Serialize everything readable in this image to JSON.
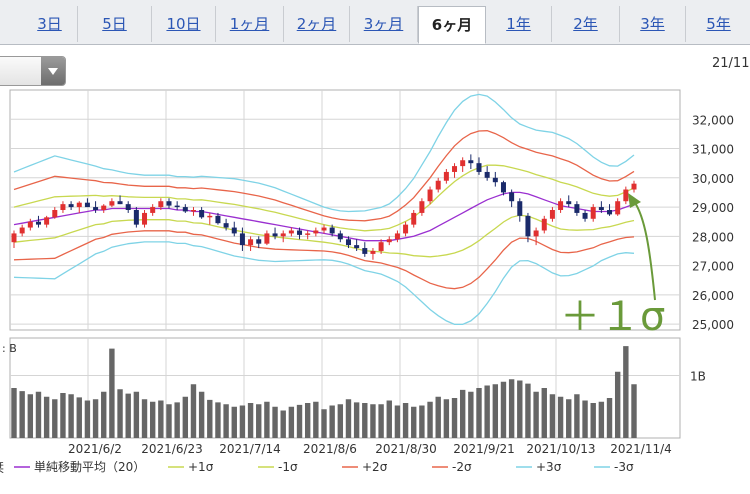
{
  "tabs": [
    {
      "label": "3日",
      "active": false
    },
    {
      "label": "5日",
      "active": false
    },
    {
      "label": "10日",
      "active": false
    },
    {
      "label": "1ヶ月",
      "active": false
    },
    {
      "label": "2ヶ月",
      "active": false
    },
    {
      "label": "3ヶ月",
      "active": false
    },
    {
      "label": "6ヶ月",
      "active": true
    },
    {
      "label": "1年",
      "active": false
    },
    {
      "label": "2年",
      "active": false
    },
    {
      "label": "3年",
      "active": false
    },
    {
      "label": "5年",
      "active": false
    }
  ],
  "date_corner": "21/11",
  "annotation_text": "＋１σ",
  "colors": {
    "up": "#e03030",
    "down": "#1a2a6a",
    "sma": "#9a2fd0",
    "sigma1": "#c8d850",
    "sigma2": "#e8654a",
    "sigma3": "#7fd3e6",
    "volume": "#666666",
    "annotation": "#6a9a3a"
  },
  "chart_data": {
    "type": "candlestick",
    "title": "",
    "price_axis": {
      "ticks": [
        "25,000",
        "26,000",
        "27,000",
        "28,000",
        "29,000",
        "30,000",
        "31,000",
        "32,000"
      ],
      "ylim": [
        24800,
        33000
      ]
    },
    "volume_axis": {
      "ticks": [
        "1B"
      ],
      "legend_prefix": ": B"
    },
    "x_labels": [
      "2021/6/2",
      "2021/6/23",
      "2021/7/14",
      "2021/8/6",
      "2021/8/30",
      "2021/9/21",
      "2021/10/13",
      "2021/11/4"
    ],
    "legend_prefix": "栞",
    "legend": [
      {
        "key": "sma",
        "label": "単純移動平均（20）"
      },
      {
        "key": "sigma1",
        "label": "+1σ"
      },
      {
        "key": "sigma1",
        "label": "-1σ"
      },
      {
        "key": "sigma2",
        "label": "+2σ"
      },
      {
        "key": "sigma2",
        "label": "-2σ"
      },
      {
        "key": "sigma3",
        "label": "+3σ"
      },
      {
        "key": "sigma3",
        "label": "-3σ"
      }
    ],
    "candles": [
      [
        27800,
        28200,
        27600,
        28100
      ],
      [
        28100,
        28400,
        28000,
        28300
      ],
      [
        28300,
        28600,
        28200,
        28500
      ],
      [
        28500,
        28700,
        28300,
        28400
      ],
      [
        28400,
        28700,
        28300,
        28650
      ],
      [
        28650,
        29000,
        28600,
        28900
      ],
      [
        28900,
        29200,
        28800,
        29100
      ],
      [
        29100,
        29200,
        28900,
        29000
      ],
      [
        29000,
        29200,
        28800,
        29150
      ],
      [
        29150,
        29300,
        29000,
        29000
      ],
      [
        29000,
        29200,
        28800,
        28900
      ],
      [
        28900,
        29100,
        28800,
        29050
      ],
      [
        29050,
        29300,
        29000,
        29200
      ],
      [
        29200,
        29400,
        29100,
        29100
      ],
      [
        29100,
        29200,
        28800,
        28900
      ],
      [
        28900,
        29000,
        28300,
        28400
      ],
      [
        28400,
        28900,
        28300,
        28800
      ],
      [
        28800,
        29100,
        28700,
        29000
      ],
      [
        29000,
        29300,
        28900,
        29200
      ],
      [
        29200,
        29300,
        28950,
        29050
      ],
      [
        29050,
        29200,
        28900,
        29000
      ],
      [
        29000,
        29100,
        28800,
        28850
      ],
      [
        28850,
        29000,
        28700,
        28900
      ],
      [
        28900,
        29000,
        28600,
        28650
      ],
      [
        28650,
        28800,
        28400,
        28700
      ],
      [
        28700,
        28800,
        28400,
        28450
      ],
      [
        28450,
        28600,
        28200,
        28300
      ],
      [
        28300,
        28500,
        28000,
        28100
      ],
      [
        28100,
        28300,
        27500,
        27700
      ],
      [
        27700,
        28000,
        27500,
        27900
      ],
      [
        27900,
        28000,
        27600,
        27750
      ],
      [
        27750,
        28200,
        27700,
        28100
      ],
      [
        28100,
        28300,
        27900,
        28000
      ],
      [
        28000,
        28200,
        27800,
        28100
      ],
      [
        28100,
        28300,
        28000,
        28200
      ],
      [
        28200,
        28300,
        27900,
        28050
      ],
      [
        28050,
        28200,
        27900,
        28100
      ],
      [
        28100,
        28300,
        28000,
        28200
      ],
      [
        28200,
        28400,
        28100,
        28300
      ],
      [
        28300,
        28400,
        28000,
        28100
      ],
      [
        28100,
        28200,
        27800,
        27900
      ],
      [
        27900,
        28000,
        27600,
        27700
      ],
      [
        27700,
        27900,
        27500,
        27600
      ],
      [
        27600,
        27800,
        27300,
        27400
      ],
      [
        27400,
        27600,
        27200,
        27500
      ],
      [
        27500,
        27900,
        27400,
        27800
      ],
      [
        27800,
        28000,
        27700,
        27900
      ],
      [
        27900,
        28200,
        27800,
        28100
      ],
      [
        28100,
        28500,
        28000,
        28400
      ],
      [
        28400,
        28900,
        28300,
        28800
      ],
      [
        28800,
        29300,
        28700,
        29200
      ],
      [
        29200,
        29700,
        29100,
        29600
      ],
      [
        29600,
        30000,
        29500,
        29900
      ],
      [
        29900,
        30300,
        29800,
        30200
      ],
      [
        30200,
        30500,
        30000,
        30400
      ],
      [
        30400,
        30700,
        30200,
        30600
      ],
      [
        30600,
        30800,
        30300,
        30500
      ],
      [
        30500,
        30700,
        30100,
        30200
      ],
      [
        30200,
        30400,
        29900,
        30000
      ],
      [
        30000,
        30200,
        29700,
        29850
      ],
      [
        29850,
        29900,
        29400,
        29500
      ],
      [
        29500,
        29600,
        29000,
        29200
      ],
      [
        29200,
        29300,
        28500,
        28700
      ],
      [
        28700,
        28800,
        27800,
        28000
      ],
      [
        28000,
        28300,
        27700,
        28200
      ],
      [
        28200,
        28700,
        28100,
        28600
      ],
      [
        28600,
        29000,
        28500,
        28900
      ],
      [
        28900,
        29300,
        28800,
        29200
      ],
      [
        29200,
        29400,
        29000,
        29100
      ],
      [
        29100,
        29200,
        28700,
        28800
      ],
      [
        28800,
        28900,
        28500,
        28600
      ],
      [
        28600,
        29100,
        28500,
        29000
      ],
      [
        29000,
        29200,
        28800,
        28900
      ],
      [
        28900,
        29100,
        28700,
        28750
      ],
      [
        28750,
        29300,
        28700,
        29200
      ],
      [
        29200,
        29700,
        29100,
        29600
      ],
      [
        29600,
        29900,
        29500,
        29800
      ]
    ],
    "sma": [
      28400,
      28450,
      28500,
      28550,
      28600,
      28650,
      28700,
      28750,
      28800,
      28850,
      28900,
      28900,
      28950,
      28950,
      28950,
      28950,
      28950,
      28950,
      28950,
      28950,
      28900,
      28900,
      28850,
      28850,
      28800,
      28750,
      28700,
      28650,
      28600,
      28550,
      28500,
      28450,
      28400,
      28350,
      28300,
      28250,
      28200,
      28150,
      28100,
      28050,
      28000,
      27950,
      27900,
      27850,
      27850,
      27850,
      27850,
      27900,
      27950,
      28000,
      28100,
      28200,
      28350,
      28500,
      28650,
      28800,
      28950,
      29100,
      29250,
      29350,
      29450,
      29500,
      29500,
      29450,
      29350,
      29250,
      29150,
      29050,
      29000,
      28950,
      28900,
      28850,
      28850,
      28850,
      28900,
      29000,
      29100
    ],
    "sigma": [
      600,
      620,
      640,
      660,
      680,
      700,
      660,
      620,
      580,
      540,
      500,
      470,
      440,
      420,
      400,
      390,
      380,
      380,
      380,
      380,
      380,
      380,
      390,
      400,
      410,
      420,
      430,
      440,
      440,
      440,
      440,
      430,
      420,
      400,
      380,
      360,
      340,
      320,
      300,
      290,
      290,
      300,
      320,
      340,
      360,
      380,
      420,
      480,
      560,
      660,
      780,
      900,
      1020,
      1130,
      1220,
      1270,
      1280,
      1250,
      1180,
      1080,
      960,
      850,
      780,
      760,
      760,
      780,
      800,
      800,
      780,
      740,
      680,
      620,
      560,
      520,
      500,
      520,
      560
    ],
    "volume_B": [
      0.8,
      0.75,
      0.7,
      0.74,
      0.66,
      0.62,
      0.72,
      0.7,
      0.65,
      0.6,
      0.62,
      0.74,
      1.43,
      0.78,
      0.71,
      0.74,
      0.62,
      0.58,
      0.6,
      0.54,
      0.57,
      0.66,
      0.86,
      0.74,
      0.61,
      0.57,
      0.54,
      0.5,
      0.52,
      0.56,
      0.54,
      0.58,
      0.5,
      0.44,
      0.5,
      0.53,
      0.56,
      0.58,
      0.46,
      0.52,
      0.54,
      0.62,
      0.57,
      0.56,
      0.54,
      0.54,
      0.6,
      0.52,
      0.56,
      0.5,
      0.52,
      0.58,
      0.66,
      0.62,
      0.64,
      0.77,
      0.74,
      0.8,
      0.84,
      0.86,
      0.9,
      0.94,
      0.92,
      0.87,
      0.74,
      0.8,
      0.7,
      0.66,
      0.62,
      0.7,
      0.6,
      0.56,
      0.58,
      0.64,
      1.06,
      1.47,
      0.86
    ]
  }
}
